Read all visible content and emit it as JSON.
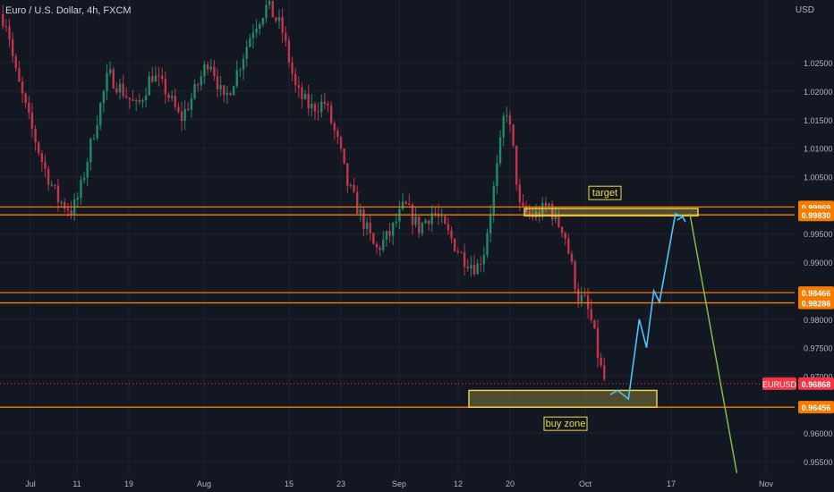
{
  "header": {
    "symbol_title": "Euro / U.S. Dollar, 4h, FXCM",
    "currency": "USD"
  },
  "colors": {
    "background": "#131722",
    "grid": "#1f2330",
    "candle_up": "#1f8a6a",
    "candle_down": "#c2354a",
    "level_line": "#f57c00",
    "zone_border": "#f2d94e",
    "projection_up": "#4fc3f7",
    "projection_down": "#8bc34a",
    "axis_text": "#b2b5be",
    "price_tag_orange": "#f57c00",
    "price_tag_red": "#f23645"
  },
  "chart_data": {
    "type": "candlestick",
    "symbol": "EURUSD",
    "timeframe": "4h",
    "ylim": [
      0.9525,
      1.036
    ],
    "x_ticks": [
      "Jul",
      "11",
      "19",
      "Aug",
      "15",
      "23",
      "Sep",
      "12",
      "20",
      "Oct",
      "17",
      "Nov"
    ],
    "y_ticks": [
      "1.02500",
      "1.02000",
      "1.01500",
      "1.01000",
      "1.00500",
      "0.99500",
      "0.99000",
      "0.98000",
      "0.97500",
      "0.97000",
      "0.96000",
      "0.95500"
    ],
    "price_path": [
      {
        "t": 0,
        "p": 1.0335
      },
      {
        "t": 1,
        "p": 1.032
      },
      {
        "t": 2,
        "p": 1.024
      },
      {
        "t": 4,
        "p": 1.015
      },
      {
        "t": 6,
        "p": 1.007
      },
      {
        "t": 8,
        "p": 1.001
      },
      {
        "t": 10,
        "p": 0.999
      },
      {
        "t": 11,
        "p": 1.002
      },
      {
        "t": 13,
        "p": 1.013
      },
      {
        "t": 15,
        "p": 1.023
      },
      {
        "t": 17,
        "p": 1.02
      },
      {
        "t": 19,
        "p": 1.017
      },
      {
        "t": 21,
        "p": 1.023
      },
      {
        "t": 23,
        "p": 1.02
      },
      {
        "t": 25,
        "p": 1.015
      },
      {
        "t": 27,
        "p": 1.02
      },
      {
        "t": 29,
        "p": 1.026
      },
      {
        "t": 31,
        "p": 1.018
      },
      {
        "t": 33,
        "p": 1.024
      },
      {
        "t": 35,
        "p": 1.031
      },
      {
        "t": 37,
        "p": 1.035
      },
      {
        "t": 39,
        "p": 1.031
      },
      {
        "t": 41,
        "p": 1.02
      },
      {
        "t": 43,
        "p": 1.017
      },
      {
        "t": 45,
        "p": 1.018
      },
      {
        "t": 47,
        "p": 1.01
      },
      {
        "t": 48,
        "p": 1.004
      },
      {
        "t": 50,
        "p": 0.998
      },
      {
        "t": 52,
        "p": 0.992
      },
      {
        "t": 54,
        "p": 0.995
      },
      {
        "t": 56,
        "p": 1.0
      },
      {
        "t": 58,
        "p": 0.996
      },
      {
        "t": 60,
        "p": 0.999
      },
      {
        "t": 62,
        "p": 0.995
      },
      {
        "t": 64,
        "p": 0.991
      },
      {
        "t": 66,
        "p": 0.989
      },
      {
        "t": 67,
        "p": 0.992
      },
      {
        "t": 69,
        "p": 1.008
      },
      {
        "t": 70,
        "p": 1.018
      },
      {
        "t": 71,
        "p": 1.01
      },
      {
        "t": 72,
        "p": 0.999
      },
      {
        "t": 74,
        "p": 0.998
      },
      {
        "t": 76,
        "p": 1.0
      },
      {
        "t": 77,
        "p": 0.997
      },
      {
        "t": 78,
        "p": 0.996
      },
      {
        "t": 79,
        "p": 0.99
      },
      {
        "t": 80,
        "p": 0.984
      },
      {
        "t": 81,
        "p": 0.983
      },
      {
        "t": 82,
        "p": 0.979
      },
      {
        "t": 83,
        "p": 0.972
      },
      {
        "t": 84,
        "p": 0.968
      }
    ],
    "horizontal_levels": [
      {
        "price": 0.99969,
        "label": "0.99969"
      },
      {
        "price": 0.9983,
        "label": "0.99830"
      },
      {
        "price": 0.98466,
        "label": "0.98466"
      },
      {
        "price": 0.98286,
        "label": "0.98286"
      },
      {
        "price": 0.96456,
        "label": "0.96456"
      }
    ],
    "current_price": {
      "symbol": "EURUSD",
      "price": 0.96868,
      "label": "0.96868"
    },
    "zones": [
      {
        "name": "target",
        "label": "target",
        "price_top": 0.9994,
        "price_bottom": 0.9984
      },
      {
        "name": "buy",
        "label": "buy zone",
        "price_top": 0.9675,
        "price_bottom": 0.96456
      }
    ],
    "projection_up": [
      {
        "t": 84.5,
        "p": 0.9668
      },
      {
        "t": 85.5,
        "p": 0.9675
      },
      {
        "t": 87,
        "p": 0.966
      },
      {
        "t": 88.5,
        "p": 0.98
      },
      {
        "t": 89.5,
        "p": 0.975
      },
      {
        "t": 90.5,
        "p": 0.985
      },
      {
        "t": 91.3,
        "p": 0.983
      },
      {
        "t": 93.5,
        "p": 0.9985
      },
      {
        "t": 94.5,
        "p": 0.998
      }
    ],
    "projection_down": [
      {
        "t": 95.5,
        "p": 0.9985
      },
      {
        "t": 102,
        "p": 0.953
      }
    ]
  }
}
